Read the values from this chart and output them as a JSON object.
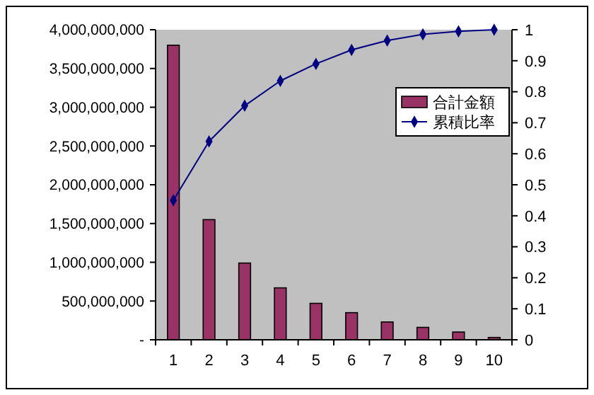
{
  "chart_data": {
    "type": "bar",
    "categories": [
      "1",
      "2",
      "3",
      "4",
      "5",
      "6",
      "7",
      "8",
      "9",
      "10"
    ],
    "series": [
      {
        "name": "合計金額",
        "color": "#993366",
        "values": [
          3800000000,
          1550000000,
          990000000,
          670000000,
          470000000,
          350000000,
          230000000,
          160000000,
          100000000,
          30000000
        ]
      },
      {
        "name": "累積比率",
        "type": "line",
        "axis": "y2",
        "color": "#000080",
        "marker": "diamond",
        "values": [
          0.45,
          0.64,
          0.755,
          0.835,
          0.89,
          0.935,
          0.965,
          0.985,
          0.995,
          1.0
        ]
      }
    ],
    "ylim": [
      0,
      4000000000
    ],
    "yticks": [
      {
        "value": 0,
        "label": "-"
      },
      {
        "value": 500000000,
        "label": "500,000,000"
      },
      {
        "value": 1000000000,
        "label": "1,000,000,000"
      },
      {
        "value": 1500000000,
        "label": "1,500,000,000"
      },
      {
        "value": 2000000000,
        "label": "2,000,000,000"
      },
      {
        "value": 2500000000,
        "label": "2,500,000,000"
      },
      {
        "value": 3000000000,
        "label": "3,000,000,000"
      },
      {
        "value": 3500000000,
        "label": "3,500,000,000"
      },
      {
        "value": 4000000000,
        "label": "4,000,000,000"
      }
    ],
    "y2lim": [
      0,
      1
    ],
    "y2ticks": [
      0,
      0.1,
      0.2,
      0.3,
      0.4,
      0.5,
      0.6,
      0.7,
      0.8,
      0.9,
      1
    ],
    "grid": false,
    "legend": "right"
  }
}
